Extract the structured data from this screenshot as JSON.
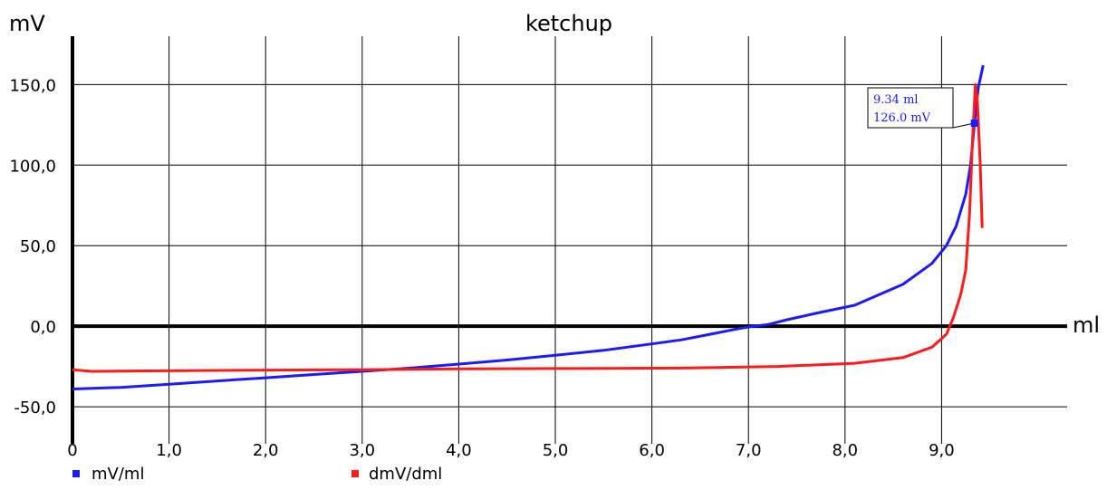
{
  "chart_data": {
    "type": "line",
    "title": "ketchup",
    "xlabel": "ml",
    "ylabel": "mV",
    "xlim": [
      0,
      10.3
    ],
    "ylim": [
      -73,
      180
    ],
    "grid": true,
    "x_ticks": [
      {
        "v": 0,
        "label": "0"
      },
      {
        "v": 1,
        "label": "1,0"
      },
      {
        "v": 2,
        "label": "2,0"
      },
      {
        "v": 3,
        "label": "3,0"
      },
      {
        "v": 4,
        "label": "4,0"
      },
      {
        "v": 5,
        "label": "5,0"
      },
      {
        "v": 6,
        "label": "6,0"
      },
      {
        "v": 7,
        "label": "7,0"
      },
      {
        "v": 8,
        "label": "8,0"
      },
      {
        "v": 9,
        "label": "9,0"
      }
    ],
    "y_ticks": [
      {
        "v": -50,
        "label": "-50,0"
      },
      {
        "v": 0,
        "label": "0,0"
      },
      {
        "v": 50,
        "label": "50,0"
      },
      {
        "v": 100,
        "label": "100,0"
      },
      {
        "v": 150,
        "label": "150,0"
      }
    ],
    "series": [
      {
        "name": "mV/ml",
        "color": "#1a1aff",
        "x": [
          0,
          0.5,
          1,
          1.5,
          2,
          2.5,
          3,
          3.5,
          4,
          4.5,
          5,
          5.5,
          6,
          6.3,
          6.6,
          6.9,
          7.05,
          7.2,
          7.4,
          7.7,
          8.1,
          8.6,
          8.9,
          9.05,
          9.15,
          9.25,
          9.3,
          9.34,
          9.38,
          9.43
        ],
        "y": [
          -39,
          -38,
          -36,
          -34,
          -32,
          -30,
          -28,
          -26,
          -23.5,
          -21,
          -18,
          -15,
          -11,
          -8.5,
          -5,
          -1.5,
          0,
          1,
          4,
          8,
          13,
          26,
          39,
          50,
          62,
          82,
          100,
          126,
          148,
          162
        ]
      },
      {
        "name": "dmV/dml",
        "color": "#ff1a1a",
        "x": [
          0,
          0.2,
          1.3,
          3,
          4,
          5,
          6.3,
          7.3,
          8.1,
          8.6,
          8.9,
          9.05,
          9.12,
          9.2,
          9.25,
          9.29,
          9.32,
          9.35,
          9.37,
          9.4,
          9.42
        ],
        "y": [
          -27,
          -28,
          -27.5,
          -27,
          -26.5,
          -26.3,
          -26,
          -25,
          -23,
          -19.5,
          -13,
          -5,
          5,
          20,
          35,
          70,
          115,
          150,
          140,
          100,
          61
        ]
      }
    ],
    "annotation": {
      "x": 9.34,
      "y": 126.0,
      "line1": "9.34 ml",
      "line2": "126.0 mV",
      "color": "#1a1aff"
    }
  }
}
